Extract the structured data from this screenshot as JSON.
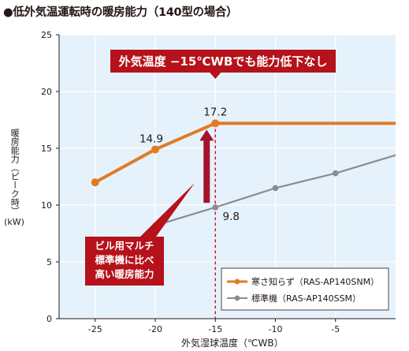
{
  "title": "●低外気温運転時の暖房能力（140型の場合）",
  "chart_data": {
    "type": "line",
    "ylabel_vertical": "暖房能力（ピーク時）",
    "ylabel_unit": "(kW)",
    "xlabel": "外気湿球温度（℃WB）",
    "xlim": [
      -28,
      0
    ],
    "ylim": [
      0,
      25
    ],
    "xticks": [
      -25,
      -20,
      -15,
      -10,
      -5
    ],
    "yticks": [
      0,
      5,
      10,
      15,
      20,
      25
    ],
    "grid": true,
    "legend_position": "bottom-right",
    "colors": {
      "plot_bg": "#e6f2fb",
      "grid": "#ffffff",
      "axis": "#231815",
      "marker_line": "#c8102e",
      "headline_bg": "#b5121b",
      "arrow": "#a5122a"
    },
    "series": [
      {
        "name": "寒さ知らず（RAS-AP140SNM）",
        "color": "#e07b24",
        "x": [
          -25,
          -20,
          -15,
          0
        ],
        "y": [
          12.0,
          14.9,
          17.2,
          17.2
        ]
      },
      {
        "name": "標準機（RAS-AP140SSM）",
        "color": "#8c8c8c",
        "x": [
          -20,
          -15,
          -10,
          -5,
          0
        ],
        "y": [
          8.2,
          9.8,
          11.5,
          12.8,
          14.4
        ]
      }
    ],
    "data_labels": [
      {
        "text": "14.9",
        "x": -20,
        "y": 14.9
      },
      {
        "text": "17.2",
        "x": -15,
        "y": 17.2
      },
      {
        "text": "9.8",
        "x": -15,
        "y": 9.8
      }
    ],
    "annotations": {
      "headline": "外気温度 −15℃WBでも能力低下なし",
      "callout_lines": [
        "ビル用マルチ",
        "標準機に比べ",
        "高い暖房能力"
      ],
      "reference_x": -15
    }
  }
}
